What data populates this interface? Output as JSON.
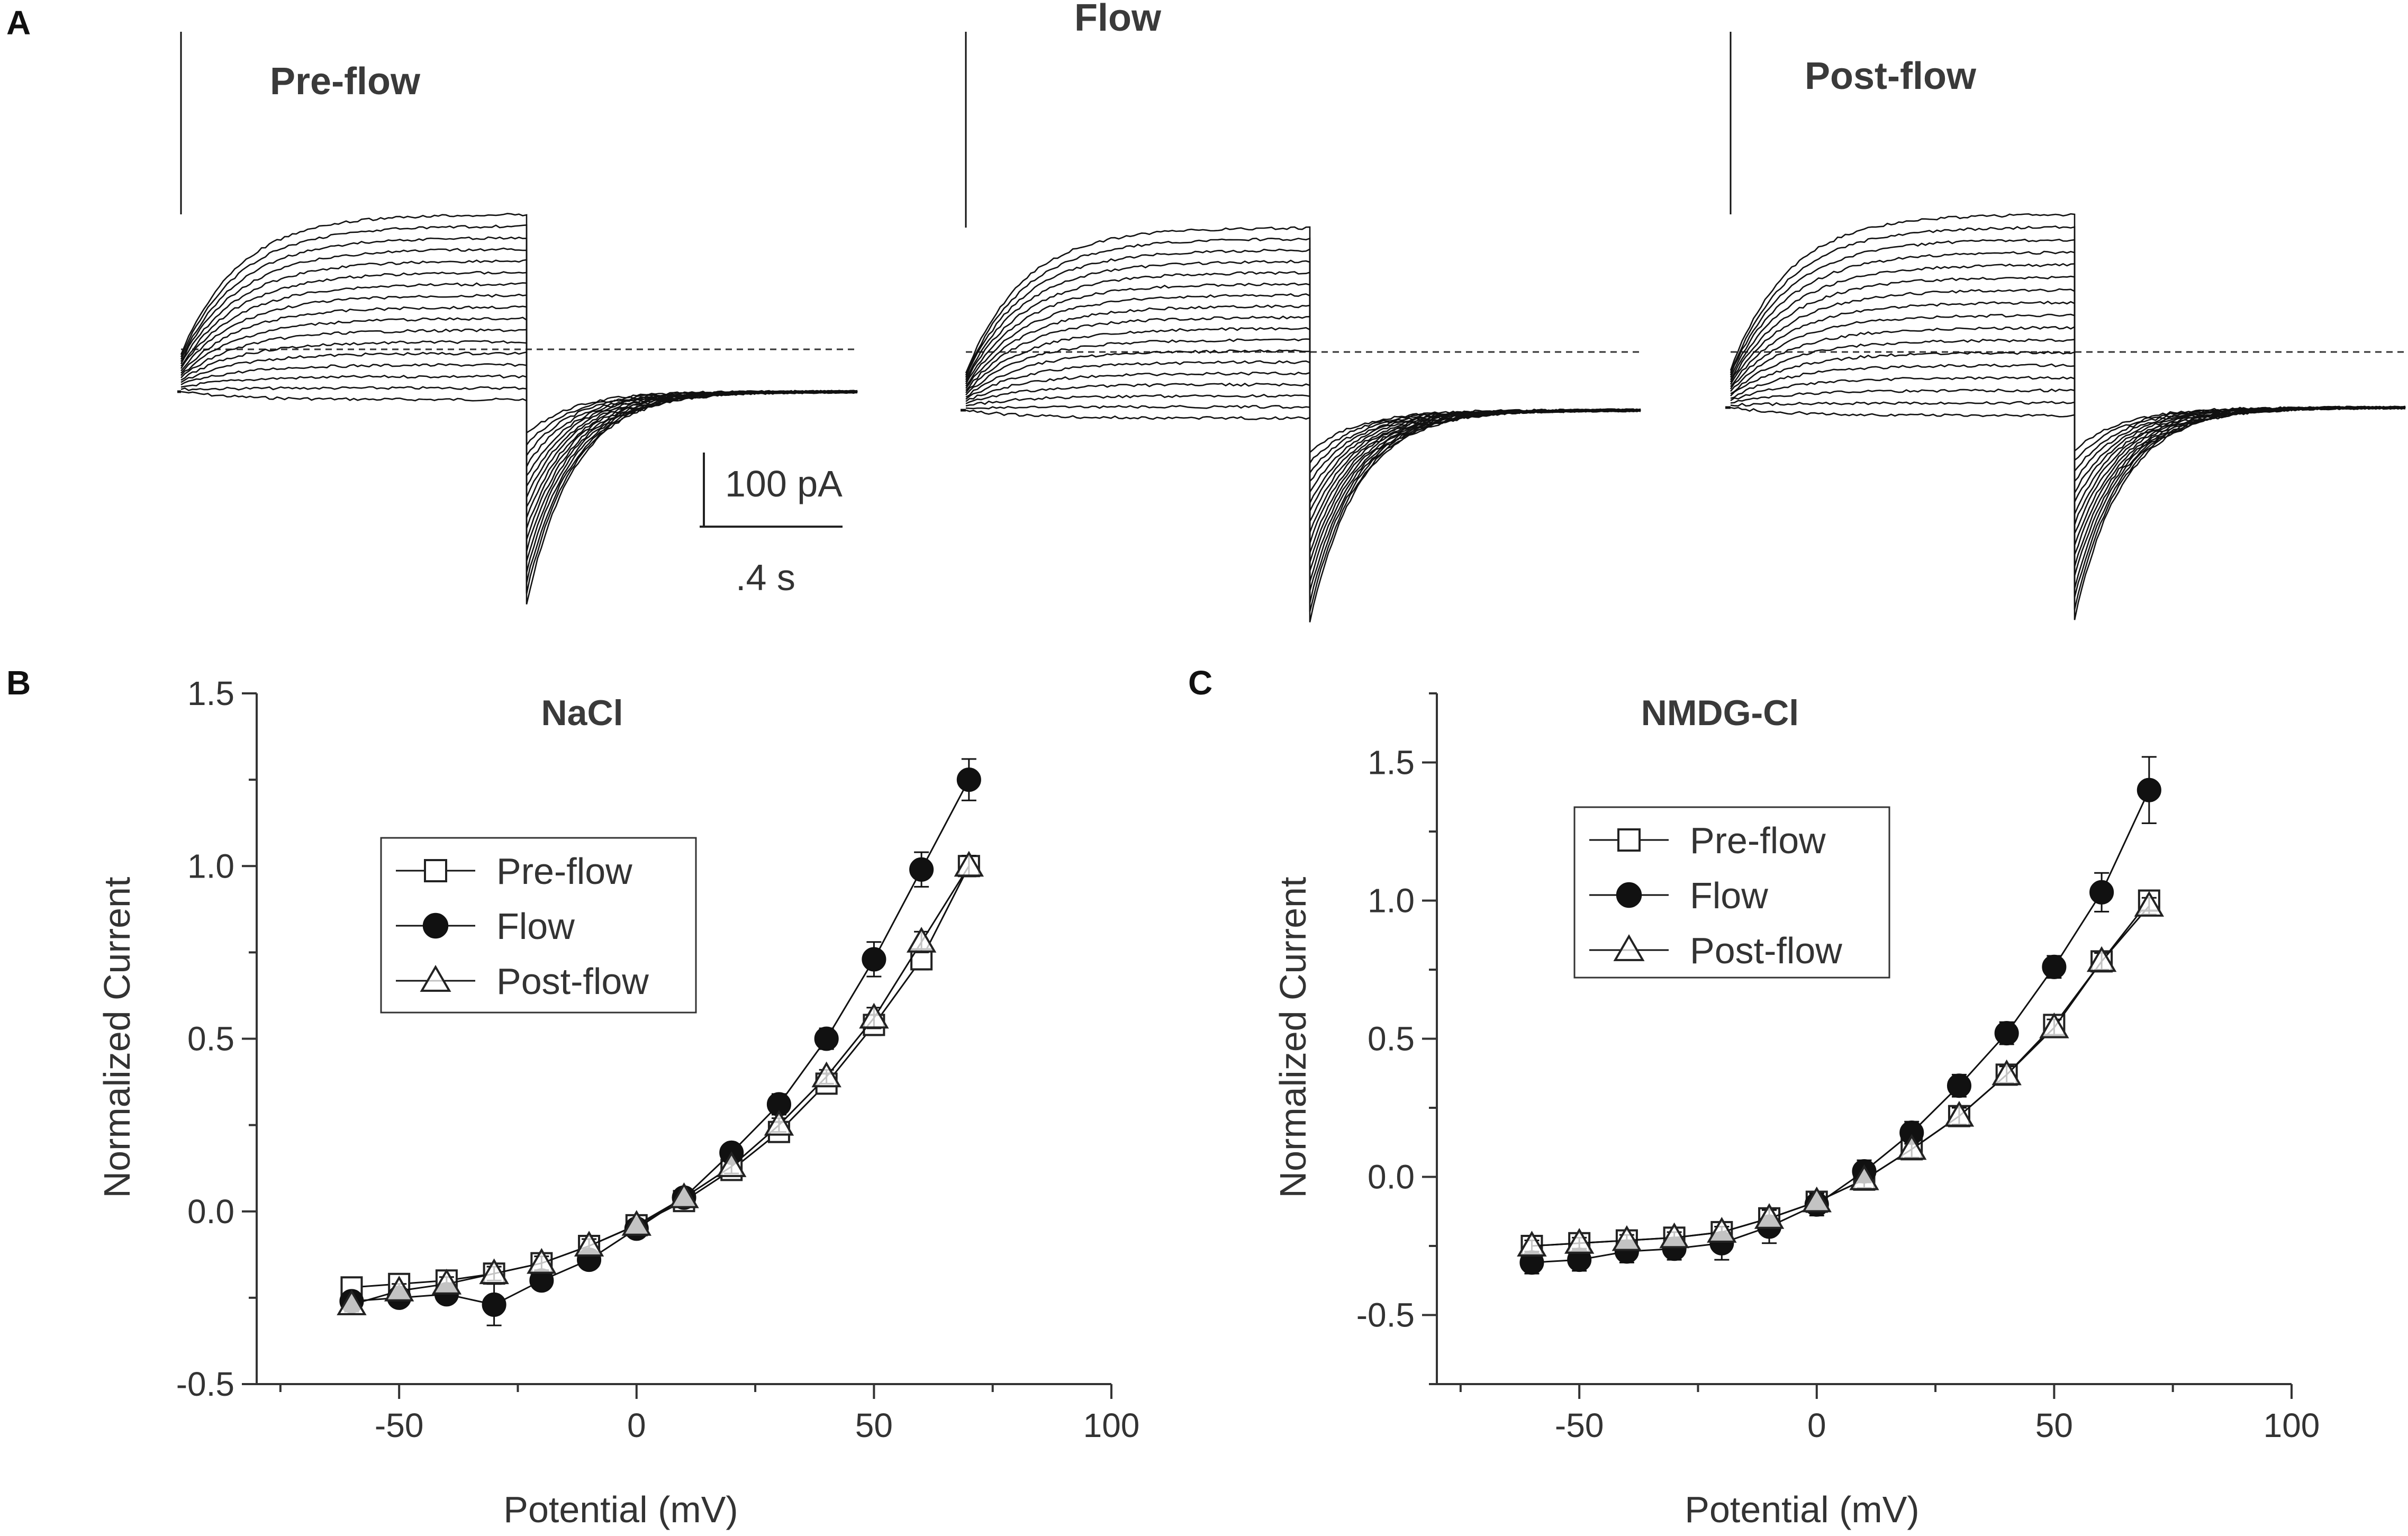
{
  "panel_a": {
    "letter": "A",
    "traces": [
      {
        "title": "Pre-flow",
        "n_pos": 9,
        "n_neg": 8,
        "max_amp": 500,
        "end_amp": 420
      },
      {
        "title": "Flow",
        "n_pos": 10,
        "n_neg": 8,
        "max_amp": 560,
        "end_amp": 560
      },
      {
        "title": "Post-flow",
        "n_pos": 9,
        "n_neg": 8,
        "max_amp": 500,
        "end_amp": 480
      }
    ],
    "scale_bar": {
      "current_label": "100 pA",
      "time_label": ".4 s"
    }
  },
  "chart_data": [
    {
      "type": "line",
      "panel_letter": "B",
      "title": "NaCl",
      "xlabel": "Potential (mV)",
      "ylabel": "Normalized Current",
      "xlim": [
        -80,
        100
      ],
      "ylim": [
        -0.5,
        1.5
      ],
      "xticks": [
        -50,
        0,
        50,
        100
      ],
      "yticks": [
        -0.5,
        0.0,
        0.5,
        1.0,
        1.5
      ],
      "xtick_labels": [
        "-50",
        "0",
        "50",
        "100"
      ],
      "ytick_labels": [
        "-0.5",
        "0.0",
        "0.5",
        "1.0",
        "1.5"
      ],
      "legend_position": "upper-left",
      "x": [
        -60,
        -50,
        -40,
        -30,
        -20,
        -10,
        0,
        10,
        20,
        30,
        40,
        50,
        60,
        70
      ],
      "series": [
        {
          "name": "Pre-flow",
          "marker": "square-open",
          "values": [
            -0.22,
            -0.21,
            -0.2,
            -0.18,
            -0.15,
            -0.1,
            -0.04,
            0.03,
            0.12,
            0.23,
            0.37,
            0.54,
            0.73,
            1.0
          ],
          "errors": [
            0.02,
            0.01,
            0.01,
            0.02,
            0.02,
            0.02,
            0.01,
            0.01,
            0.02,
            0.02,
            0.02,
            0.03,
            0.03,
            0.02
          ]
        },
        {
          "name": "Flow",
          "marker": "circle-filled",
          "values": [
            -0.26,
            -0.25,
            -0.24,
            -0.27,
            -0.2,
            -0.14,
            -0.05,
            0.04,
            0.17,
            0.31,
            0.5,
            0.73,
            0.99,
            1.25
          ],
          "errors": [
            0.02,
            0.02,
            0.02,
            0.06,
            0.02,
            0.02,
            0.01,
            0.02,
            0.02,
            0.03,
            0.03,
            0.05,
            0.05,
            0.06
          ]
        },
        {
          "name": "Post-flow",
          "marker": "triangle-open",
          "values": [
            -0.27,
            -0.23,
            -0.21,
            -0.18,
            -0.15,
            -0.1,
            -0.04,
            0.04,
            0.13,
            0.25,
            0.39,
            0.56,
            0.78,
            1.0
          ],
          "errors": [
            0.02,
            0.02,
            0.02,
            0.02,
            0.02,
            0.02,
            0.01,
            0.01,
            0.02,
            0.02,
            0.02,
            0.03,
            0.03,
            0.03
          ]
        }
      ]
    },
    {
      "type": "line",
      "panel_letter": "C",
      "title": "NMDG-Cl",
      "xlabel": "Potential (mV)",
      "ylabel": "Normalized Current",
      "xlim": [
        -80,
        100
      ],
      "ylim": [
        -0.75,
        1.75
      ],
      "xticks": [
        -50,
        0,
        50,
        100
      ],
      "yticks": [
        -0.5,
        0.0,
        0.5,
        1.0,
        1.5
      ],
      "xtick_labels": [
        "-50",
        "0",
        "50",
        "100"
      ],
      "ytick_labels": [
        "-0.5",
        "0.0",
        "0.5",
        "1.0",
        "1.5"
      ],
      "legend_position": "upper-left",
      "x": [
        -60,
        -50,
        -40,
        -30,
        -20,
        -10,
        0,
        10,
        20,
        30,
        40,
        50,
        60,
        70
      ],
      "series": [
        {
          "name": "Pre-flow",
          "marker": "square-open",
          "values": [
            -0.25,
            -0.24,
            -0.23,
            -0.22,
            -0.2,
            -0.15,
            -0.09,
            -0.01,
            0.1,
            0.22,
            0.37,
            0.55,
            0.78,
            1.0
          ],
          "errors": [
            0.02,
            0.02,
            0.02,
            0.02,
            0.02,
            0.03,
            0.03,
            0.03,
            0.03,
            0.03,
            0.03,
            0.03,
            0.03,
            0.03
          ]
        },
        {
          "name": "Flow",
          "marker": "circle-filled",
          "values": [
            -0.31,
            -0.3,
            -0.27,
            -0.26,
            -0.24,
            -0.18,
            -0.1,
            0.02,
            0.16,
            0.33,
            0.52,
            0.76,
            1.03,
            1.4
          ],
          "errors": [
            0.04,
            0.04,
            0.04,
            0.04,
            0.06,
            0.06,
            0.04,
            0.04,
            0.04,
            0.04,
            0.04,
            0.04,
            0.07,
            0.12
          ]
        },
        {
          "name": "Post-flow",
          "marker": "triangle-open",
          "values": [
            -0.25,
            -0.24,
            -0.23,
            -0.22,
            -0.2,
            -0.15,
            -0.09,
            -0.01,
            0.1,
            0.22,
            0.37,
            0.54,
            0.78,
            0.98
          ],
          "errors": [
            0.02,
            0.02,
            0.02,
            0.02,
            0.02,
            0.03,
            0.03,
            0.03,
            0.03,
            0.03,
            0.03,
            0.03,
            0.03,
            0.03
          ]
        }
      ]
    }
  ]
}
